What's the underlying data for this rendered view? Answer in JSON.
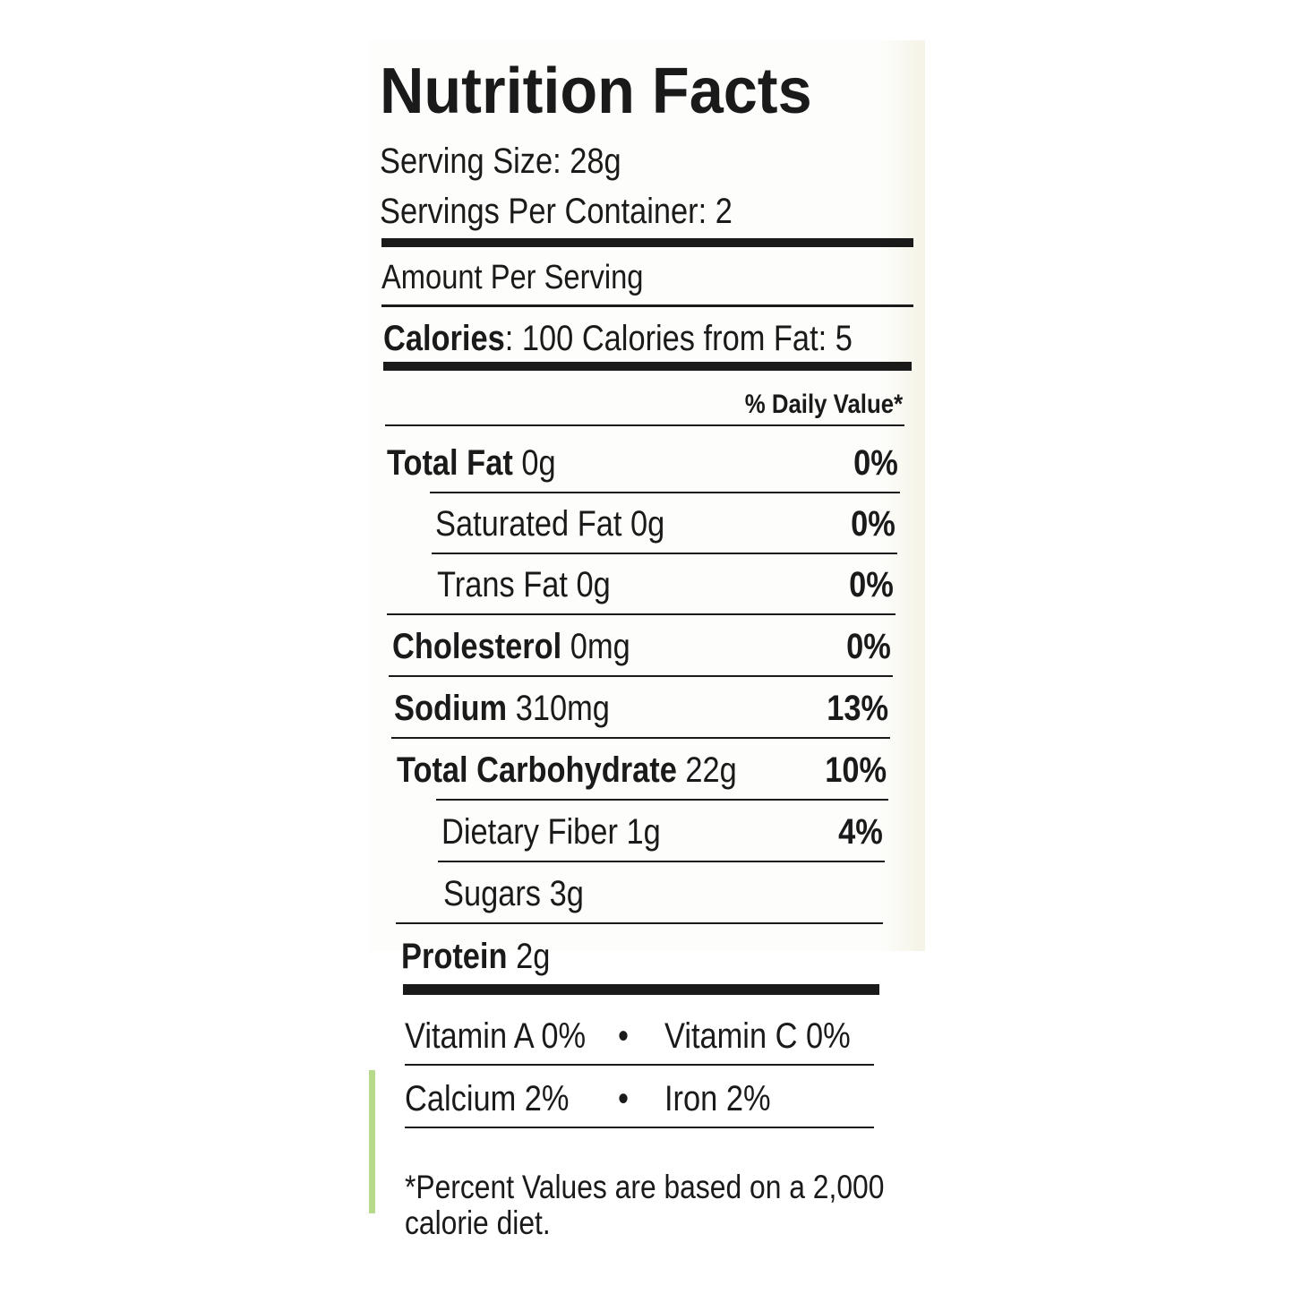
{
  "title": "Nutrition Facts",
  "serving_size": "Serving Size: 28g",
  "servings_per_container": "Servings Per Container: 2",
  "amount_per_serving": "Amount Per Serving",
  "calories": {
    "label": "Calories",
    "text": ": 100 Calories from Fat: 5"
  },
  "daily_value_header": "% Daily Value*",
  "rows": [
    {
      "label": "Total Fat",
      "amount": "0g",
      "dv": "0%"
    },
    {
      "label": "Saturated Fat",
      "amount": "0g",
      "dv": "0%"
    },
    {
      "label": "Trans Fat",
      "amount": "0g",
      "dv": "0%"
    },
    {
      "label": "Cholesterol",
      "amount": "0mg",
      "dv": "0%"
    },
    {
      "label": "Sodium",
      "amount": "310mg",
      "dv": "13%"
    },
    {
      "label": "Total Carbohydrate",
      "amount": "22g",
      "dv": "10%"
    },
    {
      "label": "Dietary Fiber",
      "amount": "1g",
      "dv": "4%"
    },
    {
      "label": "Sugars",
      "amount": "3g"
    },
    {
      "label": "Protein",
      "amount": "2g"
    }
  ],
  "vitamins": [
    [
      "Vitamin A 0%",
      "Vitamin C 0%"
    ],
    [
      "Calcium 2%",
      "Iron 2%"
    ]
  ],
  "separator": "•",
  "footnote": [
    "*Percent Values are based on a 2,000",
    "calorie diet."
  ]
}
